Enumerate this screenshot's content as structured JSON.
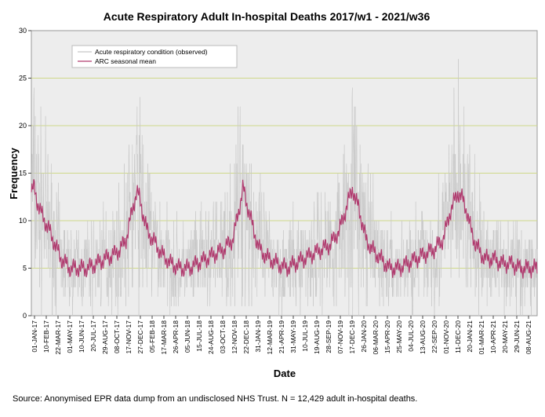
{
  "chart_data": {
    "type": "line",
    "title": "Acute Respiratory Adult In-hospital Deaths 2017/w1 - 2021/w36",
    "xlabel": "Date",
    "ylabel": "Frequency",
    "ylim": [
      0,
      30
    ],
    "yticks": [
      0,
      5,
      10,
      15,
      20,
      25,
      30
    ],
    "grid": true,
    "legend_position": "top-left",
    "x_tick_labels": [
      "01-JAN-17",
      "10-FEB-17",
      "22-MAR-17",
      "01-MAY-17",
      "10-JUN-17",
      "20-JUL-17",
      "29-AUG-17",
      "08-OCT-17",
      "17-NOV-17",
      "27-DEC-17",
      "05-FEB-18",
      "17-MAR-18",
      "26-APR-18",
      "05-JUN-18",
      "15-JUL-18",
      "24-AUG-18",
      "03-OCT-18",
      "12-NOV-18",
      "22-DEC-18",
      "31-JAN-19",
      "12-MAR-19",
      "21-APR-19",
      "31-MAY-19",
      "10-JUL-19",
      "19-AUG-19",
      "28-SEP-19",
      "07-NOV-19",
      "17-DEC-19",
      "26-JAN-20",
      "06-MAR-20",
      "15-APR-20",
      "25-MAY-20",
      "04-JUL-20",
      "13-AUG-20",
      "22-SEP-20",
      "01-NOV-20",
      "11-DEC-20",
      "20-JAN-21",
      "01-MAR-21",
      "10-APR-21",
      "20-MAY-21",
      "29-JUN-21",
      "08-AUG-21"
    ],
    "x_range_days": [
      0,
      1708
    ],
    "series": [
      {
        "name": "Acute respiratory condition (observed)",
        "color": "#c8c8c8",
        "kind": "daily",
        "seed": 7
      },
      {
        "name": "ARC seasonal mean",
        "color": "#b03a6e",
        "x_days": [
          0,
          10,
          20,
          30,
          45,
          60,
          80,
          100,
          130,
          160,
          190,
          220,
          250,
          280,
          300,
          320,
          340,
          355,
          365,
          375,
          390,
          410,
          440,
          470,
          500,
          530,
          560,
          590,
          620,
          650,
          680,
          700,
          715,
          725,
          735,
          750,
          770,
          800,
          830,
          860,
          890,
          920,
          950,
          980,
          1010,
          1040,
          1070,
          1085,
          1095,
          1105,
          1115,
          1130,
          1150,
          1180,
          1210,
          1240,
          1270,
          1300,
          1330,
          1360,
          1390,
          1415,
          1440,
          1450,
          1460,
          1470,
          1485,
          1500,
          1530,
          1560,
          1590,
          1620,
          1650,
          1680,
          1708
        ],
        "values": [
          13,
          13.5,
          12,
          11,
          10,
          9,
          7.5,
          6,
          5,
          5,
          5,
          5.5,
          6,
          6.5,
          7,
          8,
          11,
          13,
          12.5,
          11,
          9,
          8,
          6.5,
          5.5,
          5,
          5,
          5.5,
          6,
          6.5,
          7,
          8,
          11,
          13.5,
          12,
          11,
          9,
          7,
          6,
          5.5,
          5,
          5.5,
          6,
          6.5,
          7,
          7.5,
          9,
          12,
          13.5,
          12,
          11.5,
          10,
          8,
          7,
          6,
          5,
          5,
          5.5,
          6,
          6.5,
          7,
          8,
          11,
          13,
          12.5,
          12,
          11,
          9,
          7.5,
          6,
          6,
          5.5,
          5.5,
          5,
          5,
          5
        ]
      }
    ]
  },
  "footer": {
    "source": "Source: Anonymised EPR data dump from an undisclosed NHS Trust. N = 12,429 adult in-hospital deaths."
  }
}
